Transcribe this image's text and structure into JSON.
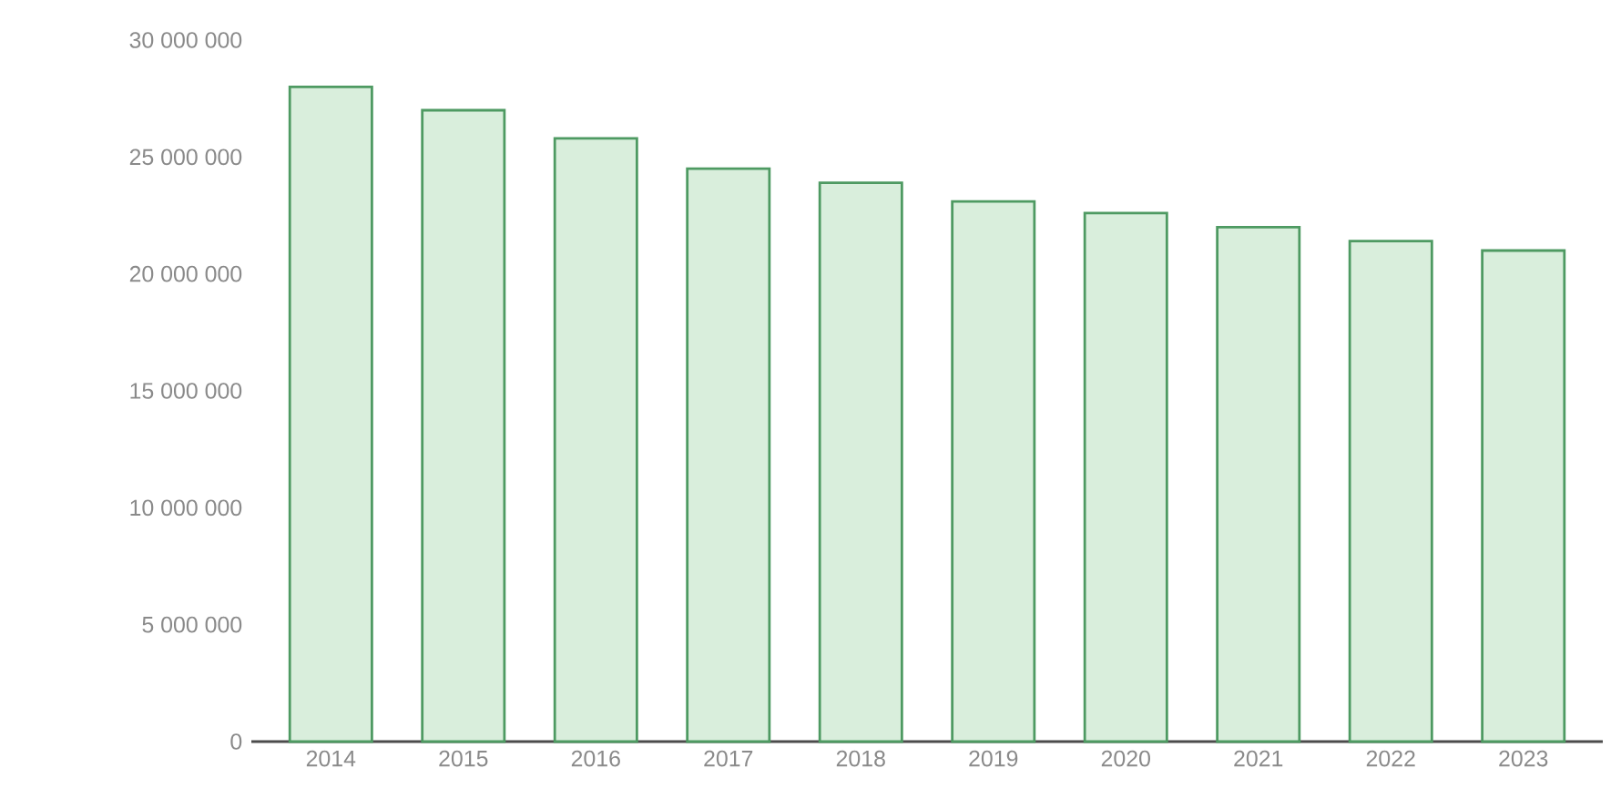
{
  "chart_data": {
    "type": "bar",
    "categories": [
      "2014",
      "2015",
      "2016",
      "2017",
      "2018",
      "2019",
      "2020",
      "2021",
      "2022",
      "2023"
    ],
    "values": [
      28000000,
      27000000,
      25800000,
      24500000,
      23900000,
      23100000,
      22600000,
      22000000,
      21400000,
      21000000
    ],
    "color": "#d9eedc",
    "ylim": [
      0,
      30000000
    ],
    "yticks": [
      {
        "value": 0,
        "label": "0"
      },
      {
        "value": 5000000,
        "label": "5 000 000"
      },
      {
        "value": 10000000,
        "label": "10 000 000"
      },
      {
        "value": 15000000,
        "label": "15 000 000"
      },
      {
        "value": 20000000,
        "label": "20 000 000"
      },
      {
        "value": 25000000,
        "label": "25 000 000"
      },
      {
        "value": 30000000,
        "label": "30 000 000"
      }
    ]
  }
}
